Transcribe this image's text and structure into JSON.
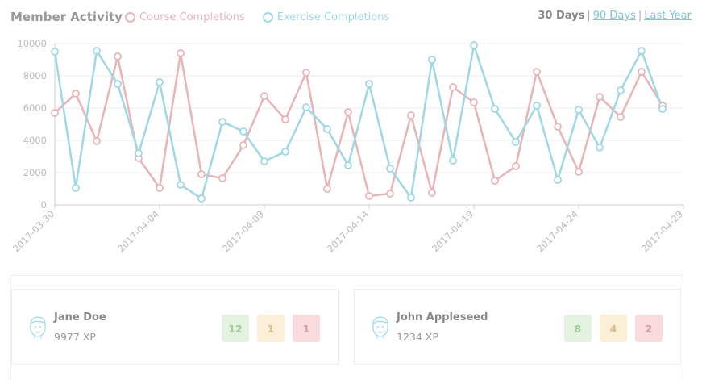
{
  "header": {
    "title": "Member Activity",
    "range_options": [
      "30 Days",
      "90 Days",
      "Last Year"
    ],
    "range_separator": "|"
  },
  "colors": {
    "course": "#e8b4b8",
    "exercise": "#9fd8e4",
    "grid": "#eeeeee",
    "axis": "#d0d0d0",
    "tick_text": "#bbbbbb"
  },
  "chart_data": {
    "type": "line",
    "title": "Member Activity",
    "ylim": [
      0,
      10000
    ],
    "yticks": [
      0,
      2000,
      4000,
      6000,
      8000,
      10000
    ],
    "xlim": [
      "2017-03-30",
      "2017-04-29"
    ],
    "xticks": [
      "2017-03-30",
      "2017-04-04",
      "2017-04-09",
      "2017-04-14",
      "2017-04-19",
      "2017-04-24",
      "2017-04-29"
    ],
    "x": [
      "2017-03-30",
      "2017-03-31",
      "2017-04-01",
      "2017-04-02",
      "2017-04-03",
      "2017-04-04",
      "2017-04-05",
      "2017-04-06",
      "2017-04-07",
      "2017-04-08",
      "2017-04-09",
      "2017-04-10",
      "2017-04-11",
      "2017-04-12",
      "2017-04-13",
      "2017-04-14",
      "2017-04-15",
      "2017-04-16",
      "2017-04-17",
      "2017-04-18",
      "2017-04-19",
      "2017-04-20",
      "2017-04-21",
      "2017-04-22",
      "2017-04-23",
      "2017-04-24",
      "2017-04-25",
      "2017-04-26",
      "2017-04-27",
      "2017-04-28"
    ],
    "series": [
      {
        "name": "Course Completions",
        "values": [
          5700,
          6900,
          3950,
          9200,
          2900,
          1050,
          9400,
          1900,
          1650,
          3700,
          6750,
          5300,
          8200,
          1000,
          5750,
          550,
          700,
          5550,
          750,
          7300,
          6350,
          1500,
          2400,
          8250,
          4850,
          2050,
          6700,
          5450,
          8250,
          6150
        ]
      },
      {
        "name": "Exercise Completions",
        "values": [
          9500,
          1050,
          9550,
          7500,
          3200,
          7600,
          1250,
          400,
          5150,
          4550,
          2700,
          3300,
          6050,
          4700,
          2450,
          7500,
          2250,
          450,
          9000,
          2750,
          9900,
          5950,
          3900,
          6150,
          1550,
          5900,
          3550,
          7100,
          9550,
          5950
        ]
      }
    ],
    "grid": true,
    "legend_placement": "top"
  },
  "members": [
    {
      "name": "Jane Doe",
      "xp": "9977 XP",
      "badges": [
        "12",
        "1",
        "1"
      ]
    },
    {
      "name": "John Appleseed",
      "xp": "1234 XP",
      "badges": [
        "8",
        "4",
        "2"
      ]
    }
  ]
}
